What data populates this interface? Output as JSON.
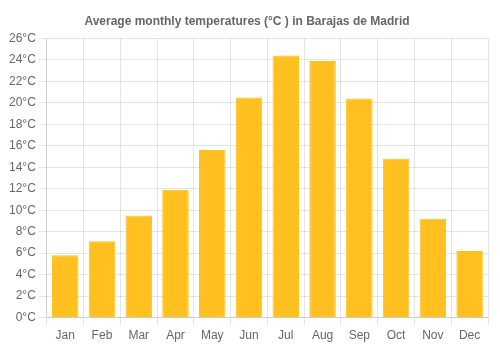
{
  "chart_data": {
    "type": "bar",
    "title": "Average monthly temperatures (°C ) in Barajas de Madrid",
    "categories": [
      "Jan",
      "Feb",
      "Mar",
      "Apr",
      "May",
      "Jun",
      "Jul",
      "Aug",
      "Sep",
      "Oct",
      "Nov",
      "Dec"
    ],
    "values": [
      5.8,
      7.1,
      9.5,
      11.9,
      15.6,
      20.5,
      24.4,
      23.9,
      20.4,
      14.8,
      9.2,
      6.2
    ],
    "color": "#FFC020",
    "ylim": [
      0,
      26
    ],
    "yticks": [
      {
        "value": 0,
        "label": "0°C"
      },
      {
        "value": 2,
        "label": "2°C"
      },
      {
        "value": 4,
        "label": "4°C"
      },
      {
        "value": 6,
        "label": "6°C"
      },
      {
        "value": 8,
        "label": "8°C"
      },
      {
        "value": 10,
        "label": "10°C"
      },
      {
        "value": 12,
        "label": "12°C"
      },
      {
        "value": 14,
        "label": "14°C"
      },
      {
        "value": 16,
        "label": "16°C"
      },
      {
        "value": 18,
        "label": "18°C"
      },
      {
        "value": 20,
        "label": "20°C"
      },
      {
        "value": 22,
        "label": "22°C"
      },
      {
        "value": 24,
        "label": "24°C"
      },
      {
        "value": 26,
        "label": "26°C"
      }
    ],
    "grid": true
  }
}
